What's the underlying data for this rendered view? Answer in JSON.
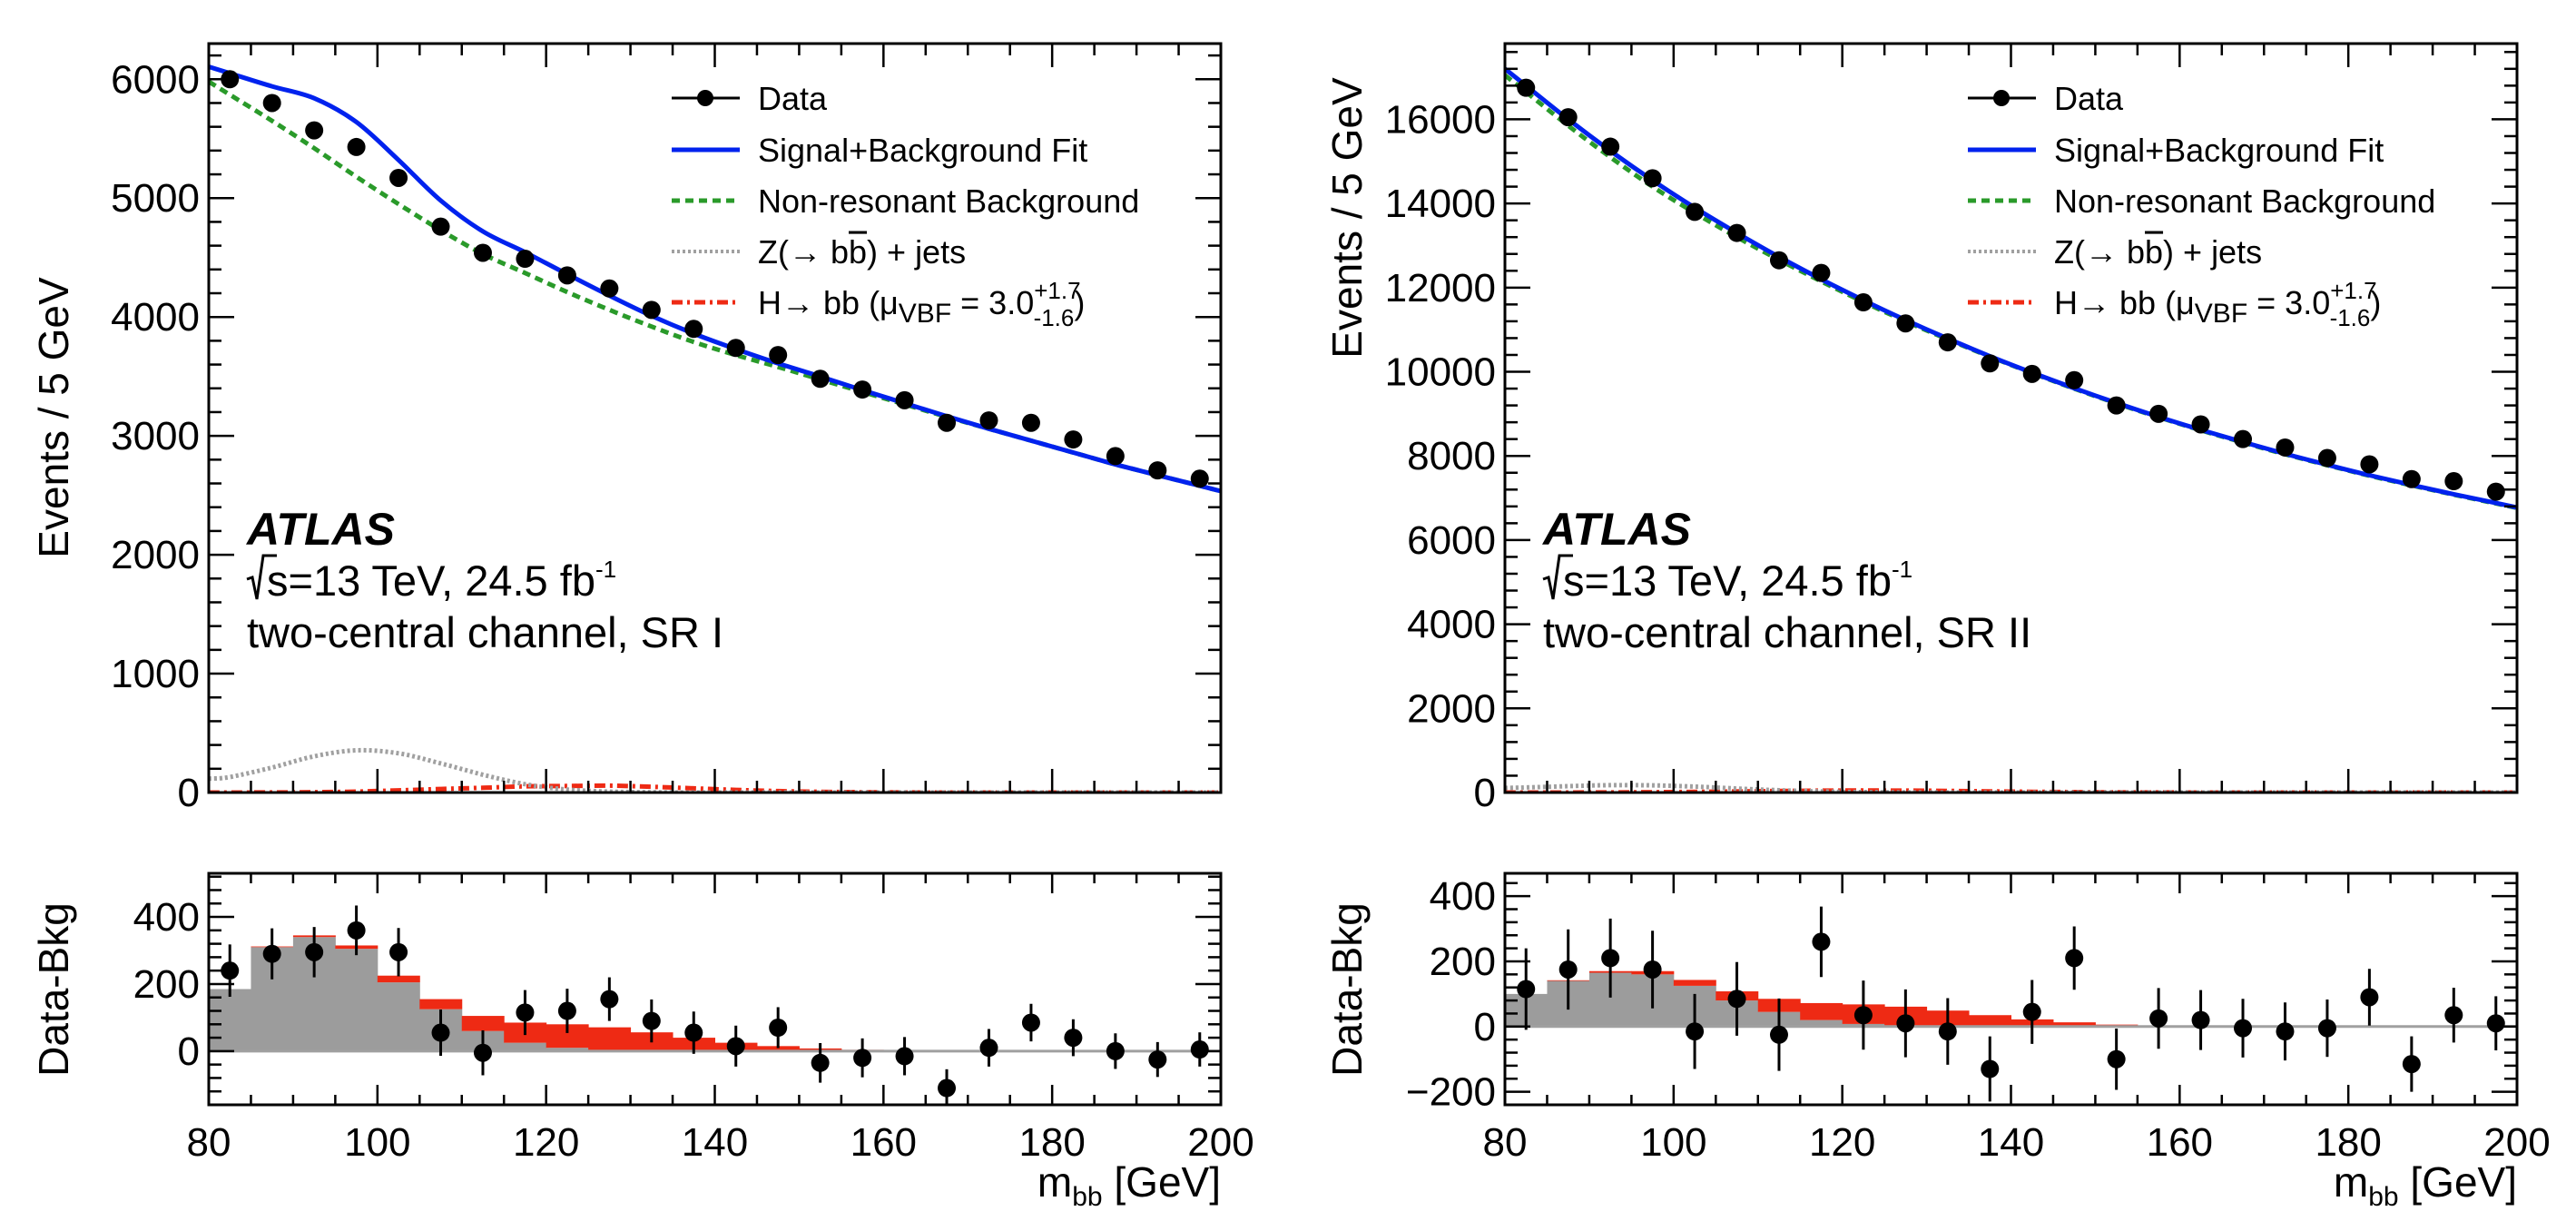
{
  "chart_data": [
    {
      "type": "scatter",
      "panel": "left-main",
      "ylabel": "Events / 5 GeV",
      "xlim": [
        80,
        200
      ],
      "ylim": [
        0,
        6300
      ],
      "yticks": [
        0,
        1000,
        2000,
        3000,
        4000,
        5000,
        6000
      ],
      "ytick_labels": [
        "0",
        "1000",
        "2000",
        "3000",
        "4000",
        "5000",
        "6000"
      ],
      "x": [
        82.5,
        87.5,
        92.5,
        97.5,
        102.5,
        107.5,
        112.5,
        117.5,
        122.5,
        127.5,
        132.5,
        137.5,
        142.5,
        147.5,
        152.5,
        157.5,
        162.5,
        167.5,
        172.5,
        177.5,
        182.5,
        187.5,
        192.5,
        197.5
      ],
      "data": [
        6000,
        5800,
        5570,
        5430,
        5170,
        4760,
        4540,
        4490,
        4350,
        4240,
        4060,
        3900,
        3740,
        3680,
        3480,
        3390,
        3300,
        3110,
        3130,
        3110,
        2970,
        2830,
        2710,
        2640
      ],
      "fit": [
        6050,
        5940,
        5840,
        5640,
        5320,
        4980,
        4720,
        4545,
        4360,
        4180,
        4010,
        3860,
        3730,
        3610,
        3500,
        3385,
        3275,
        3165,
        3060,
        2960,
        2860,
        2760,
        2670,
        2580
      ],
      "background": [
        5870,
        5650,
        5420,
        5180,
        4950,
        4730,
        4530,
        4370,
        4210,
        4060,
        3920,
        3790,
        3680,
        3580,
        3475,
        3370,
        3265,
        3160,
        3060,
        2960,
        2860,
        2760,
        2670,
        2580
      ],
      "zjets": [
        130,
        210,
        305,
        355,
        330,
        245,
        150,
        70,
        25,
        8,
        2,
        0,
        0,
        0,
        0,
        0,
        0,
        0,
        0,
        0,
        0,
        0,
        0,
        0
      ],
      "higgs": [
        0,
        1,
        3,
        8,
        18,
        30,
        40,
        52,
        55,
        58,
        48,
        35,
        22,
        12,
        6,
        3,
        1,
        0,
        0,
        0,
        0,
        0,
        0,
        0
      ],
      "legend": [
        "Data",
        "Signal+Background Fit",
        "Non-resonant Background",
        "Z(→ bb̄) + jets",
        "H→ bb̄ (μVBF = 3.0+1.7−1.6)"
      ],
      "legend_position": "top-right",
      "annotations": [
        "ATLAS",
        "√s=13 TeV, 24.5 fb-1",
        "two-central channel, SR I"
      ]
    },
    {
      "type": "scatter",
      "panel": "left-ratio",
      "ylabel": "Data-Bkg",
      "xlabel": "mbb [GeV]",
      "xlim": [
        80,
        200
      ],
      "ylim": [
        -160,
        530
      ],
      "xticks": [
        80,
        100,
        120,
        140,
        160,
        180,
        200
      ],
      "xtick_labels": [
        "80",
        "100",
        "120",
        "140",
        "160",
        "180",
        "200"
      ],
      "yticks": [
        0,
        200,
        400
      ],
      "ytick_labels": [
        "0",
        "200",
        "400"
      ],
      "x": [
        82.5,
        87.5,
        92.5,
        97.5,
        102.5,
        107.5,
        112.5,
        117.5,
        122.5,
        127.5,
        132.5,
        137.5,
        142.5,
        147.5,
        152.5,
        157.5,
        162.5,
        167.5,
        172.5,
        177.5,
        182.5,
        187.5,
        192.5,
        197.5
      ],
      "values": [
        240,
        290,
        295,
        360,
        295,
        55,
        -5,
        115,
        120,
        155,
        90,
        55,
        15,
        70,
        -35,
        -20,
        -15,
        -110,
        10,
        85,
        40,
        0,
        -25,
        5
      ],
      "errors": [
        78,
        76,
        75,
        74,
        72,
        69,
        67,
        67,
        66,
        65,
        64,
        63,
        61,
        61,
        59,
        58,
        57,
        56,
        56,
        56,
        55,
        53,
        52,
        51
      ],
      "zjets_hist": [
        185,
        310,
        340,
        305,
        205,
        125,
        60,
        25,
        10,
        3,
        1,
        0,
        0,
        0,
        0,
        0,
        0,
        0,
        0,
        0,
        0,
        0,
        0,
        0
      ],
      "higgs_hist": [
        0,
        2,
        5,
        10,
        20,
        30,
        45,
        60,
        70,
        68,
        55,
        40,
        25,
        15,
        8,
        4,
        2,
        0,
        0,
        0,
        0,
        0,
        0,
        0
      ]
    },
    {
      "type": "scatter",
      "panel": "right-main",
      "ylabel": "Events / 5 GeV",
      "xlim": [
        80,
        200
      ],
      "ylim": [
        0,
        17800
      ],
      "yticks": [
        0,
        2000,
        4000,
        6000,
        8000,
        10000,
        12000,
        14000,
        16000
      ],
      "ytick_labels": [
        "0",
        "2000",
        "4000",
        "6000",
        "8000",
        "10000",
        "12000",
        "14000",
        "16000"
      ],
      "x": [
        82.5,
        87.5,
        92.5,
        97.5,
        102.5,
        107.5,
        112.5,
        117.5,
        122.5,
        127.5,
        132.5,
        137.5,
        142.5,
        147.5,
        152.5,
        157.5,
        162.5,
        167.5,
        172.5,
        177.5,
        182.5,
        187.5,
        192.5,
        197.5
      ],
      "data": [
        16750,
        16050,
        15350,
        14600,
        13800,
        13300,
        12650,
        12350,
        11650,
        11150,
        10700,
        10200,
        9950,
        9800,
        9200,
        9000,
        8750,
        8400,
        8200,
        7950,
        7800,
        7450,
        7400,
        7150
      ],
      "fit": [
        16800,
        16000,
        15250,
        14550,
        13900,
        13300,
        12730,
        12200,
        11700,
        11230,
        10790,
        10370,
        9980,
        9610,
        9260,
        8930,
        8620,
        8330,
        8050,
        7790,
        7540,
        7310,
        7090,
        6880
      ],
      "background": [
        16650,
        15850,
        15100,
        14400,
        13780,
        13200,
        12660,
        12150,
        11660,
        11200,
        10770,
        10360,
        9970,
        9600,
        9250,
        8920,
        8610,
        8320,
        8040,
        7780,
        7530,
        7300,
        7080,
        6870
      ],
      "zjets": [
        120,
        150,
        175,
        170,
        140,
        95,
        55,
        25,
        10,
        3,
        0,
        0,
        0,
        0,
        0,
        0,
        0,
        0,
        0,
        0,
        0,
        0,
        0,
        0
      ],
      "higgs": [
        0,
        1,
        3,
        8,
        16,
        26,
        36,
        45,
        48,
        46,
        38,
        28,
        18,
        10,
        5,
        2,
        1,
        0,
        0,
        0,
        0,
        0,
        0,
        0
      ],
      "legend": [
        "Data",
        "Signal+Background Fit",
        "Non-resonant Background",
        "Z(→ bb̄) + jets",
        "H→ bb̄ (μVBF = 3.0+1.7−1.6)"
      ],
      "legend_position": "top-right",
      "annotations": [
        "ATLAS",
        "√s=13 TeV, 24.5 fb-1",
        "two-central channel, SR II"
      ]
    },
    {
      "type": "scatter",
      "panel": "right-ratio",
      "ylabel": "Data-Bkg",
      "xlabel": "mbb [GeV]",
      "xlim": [
        80,
        200
      ],
      "ylim": [
        -240,
        470
      ],
      "xticks": [
        80,
        100,
        120,
        140,
        160,
        180,
        200
      ],
      "xtick_labels": [
        "80",
        "100",
        "120",
        "140",
        "160",
        "180",
        "200"
      ],
      "yticks": [
        -200,
        0,
        200,
        400
      ],
      "ytick_labels": [
        "−200",
        "0",
        "200",
        "400"
      ],
      "x": [
        82.5,
        87.5,
        92.5,
        97.5,
        102.5,
        107.5,
        112.5,
        117.5,
        122.5,
        127.5,
        132.5,
        137.5,
        142.5,
        147.5,
        152.5,
        157.5,
        162.5,
        167.5,
        172.5,
        177.5,
        182.5,
        187.5,
        192.5,
        197.5
      ],
      "values": [
        115,
        175,
        210,
        175,
        -15,
        85,
        -25,
        260,
        35,
        10,
        -15,
        -130,
        45,
        210,
        -100,
        25,
        20,
        -5,
        -15,
        -5,
        90,
        -115,
        35,
        10
      ],
      "errors": [
        125,
        123,
        121,
        119,
        115,
        113,
        111,
        108,
        106,
        104,
        102,
        100,
        98,
        97,
        94,
        93,
        92,
        90,
        89,
        88,
        87,
        85,
        84,
        83
      ],
      "zjets_hist": [
        100,
        140,
        165,
        160,
        125,
        80,
        45,
        20,
        8,
        3,
        1,
        0,
        0,
        0,
        0,
        0,
        0,
        0,
        0,
        0,
        0,
        0,
        0,
        0
      ],
      "higgs_hist": [
        0,
        2,
        5,
        10,
        18,
        28,
        40,
        52,
        60,
        58,
        48,
        35,
        22,
        13,
        6,
        3,
        1,
        0,
        0,
        0,
        0,
        0,
        0,
        0
      ]
    }
  ],
  "labels": {
    "legend_data": "Data",
    "legend_fit": "Signal+Background Fit",
    "legend_bkg": "Non-resonant Background",
    "legend_z_pre": "Z(→ b",
    "legend_z_b": "b",
    "legend_z_post": ") + jets",
    "legend_h_pre": "H→ b",
    "legend_h_b": "b",
    "legend_h_mu_open": " (μ",
    "legend_h_sub": "VBF",
    "legend_h_eq": " =  3.0",
    "legend_h_sup": "+1.7",
    "legend_h_low": "-1.6",
    "legend_h_close": ")",
    "ylabel_main": "Events / 5 GeV",
    "ylabel_ratio": "Data-Bkg",
    "xlabel_m": "m",
    "xlabel_sub": "bb",
    "xlabel_unit": " [GeV]",
    "atlas": "ATLAS",
    "sqrt_s": "s=13 TeV, 24.5 fb",
    "lumi_sup": "-1",
    "channel_left": "two-central channel, SR I",
    "channel_right": "two-central channel, SR II"
  },
  "colors": {
    "data": "#000000",
    "fit": "#0022ee",
    "background": "#2a9a2a",
    "zjets": "#a0a0a0",
    "higgs": "#ee2a14",
    "zjets_fill": "#9c9c9c",
    "higgs_fill": "#ee2a14"
  }
}
